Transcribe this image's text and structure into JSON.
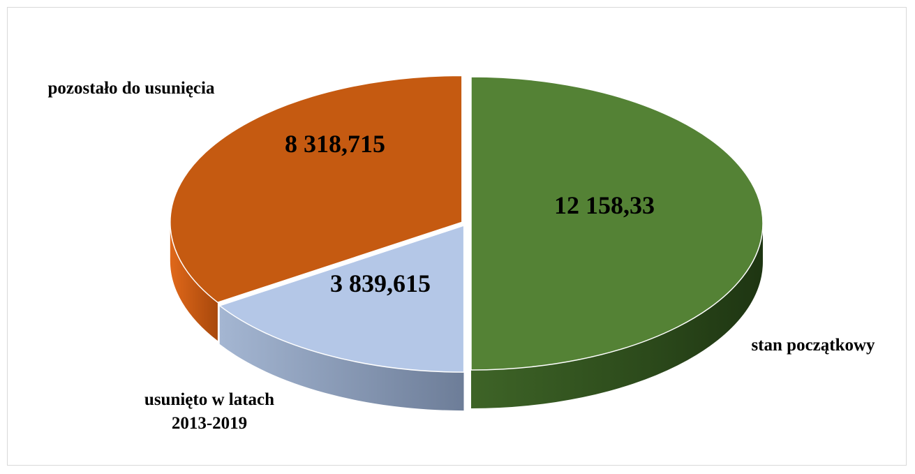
{
  "chart_data": {
    "type": "pie",
    "categories": [
      "stan początkowy",
      "usunięto w latach 2013-2019",
      "pozostało do usunięcia"
    ],
    "values": [
      12158.33,
      3839.615,
      8318.715
    ],
    "value_labels": [
      "12 158,33",
      "3 839,615",
      "8 318,715"
    ],
    "category_labels": {
      "stan_poczatkowy": [
        "stan początkowy"
      ],
      "usunieto": [
        "usunięto w latach",
        "2013-2019"
      ],
      "pozostalo": [
        "pozostało do usunięcia"
      ]
    },
    "colors": [
      "#548235",
      "#b4c7e7",
      "#c55a11"
    ],
    "style": "3d-exploded",
    "legend": "none"
  }
}
